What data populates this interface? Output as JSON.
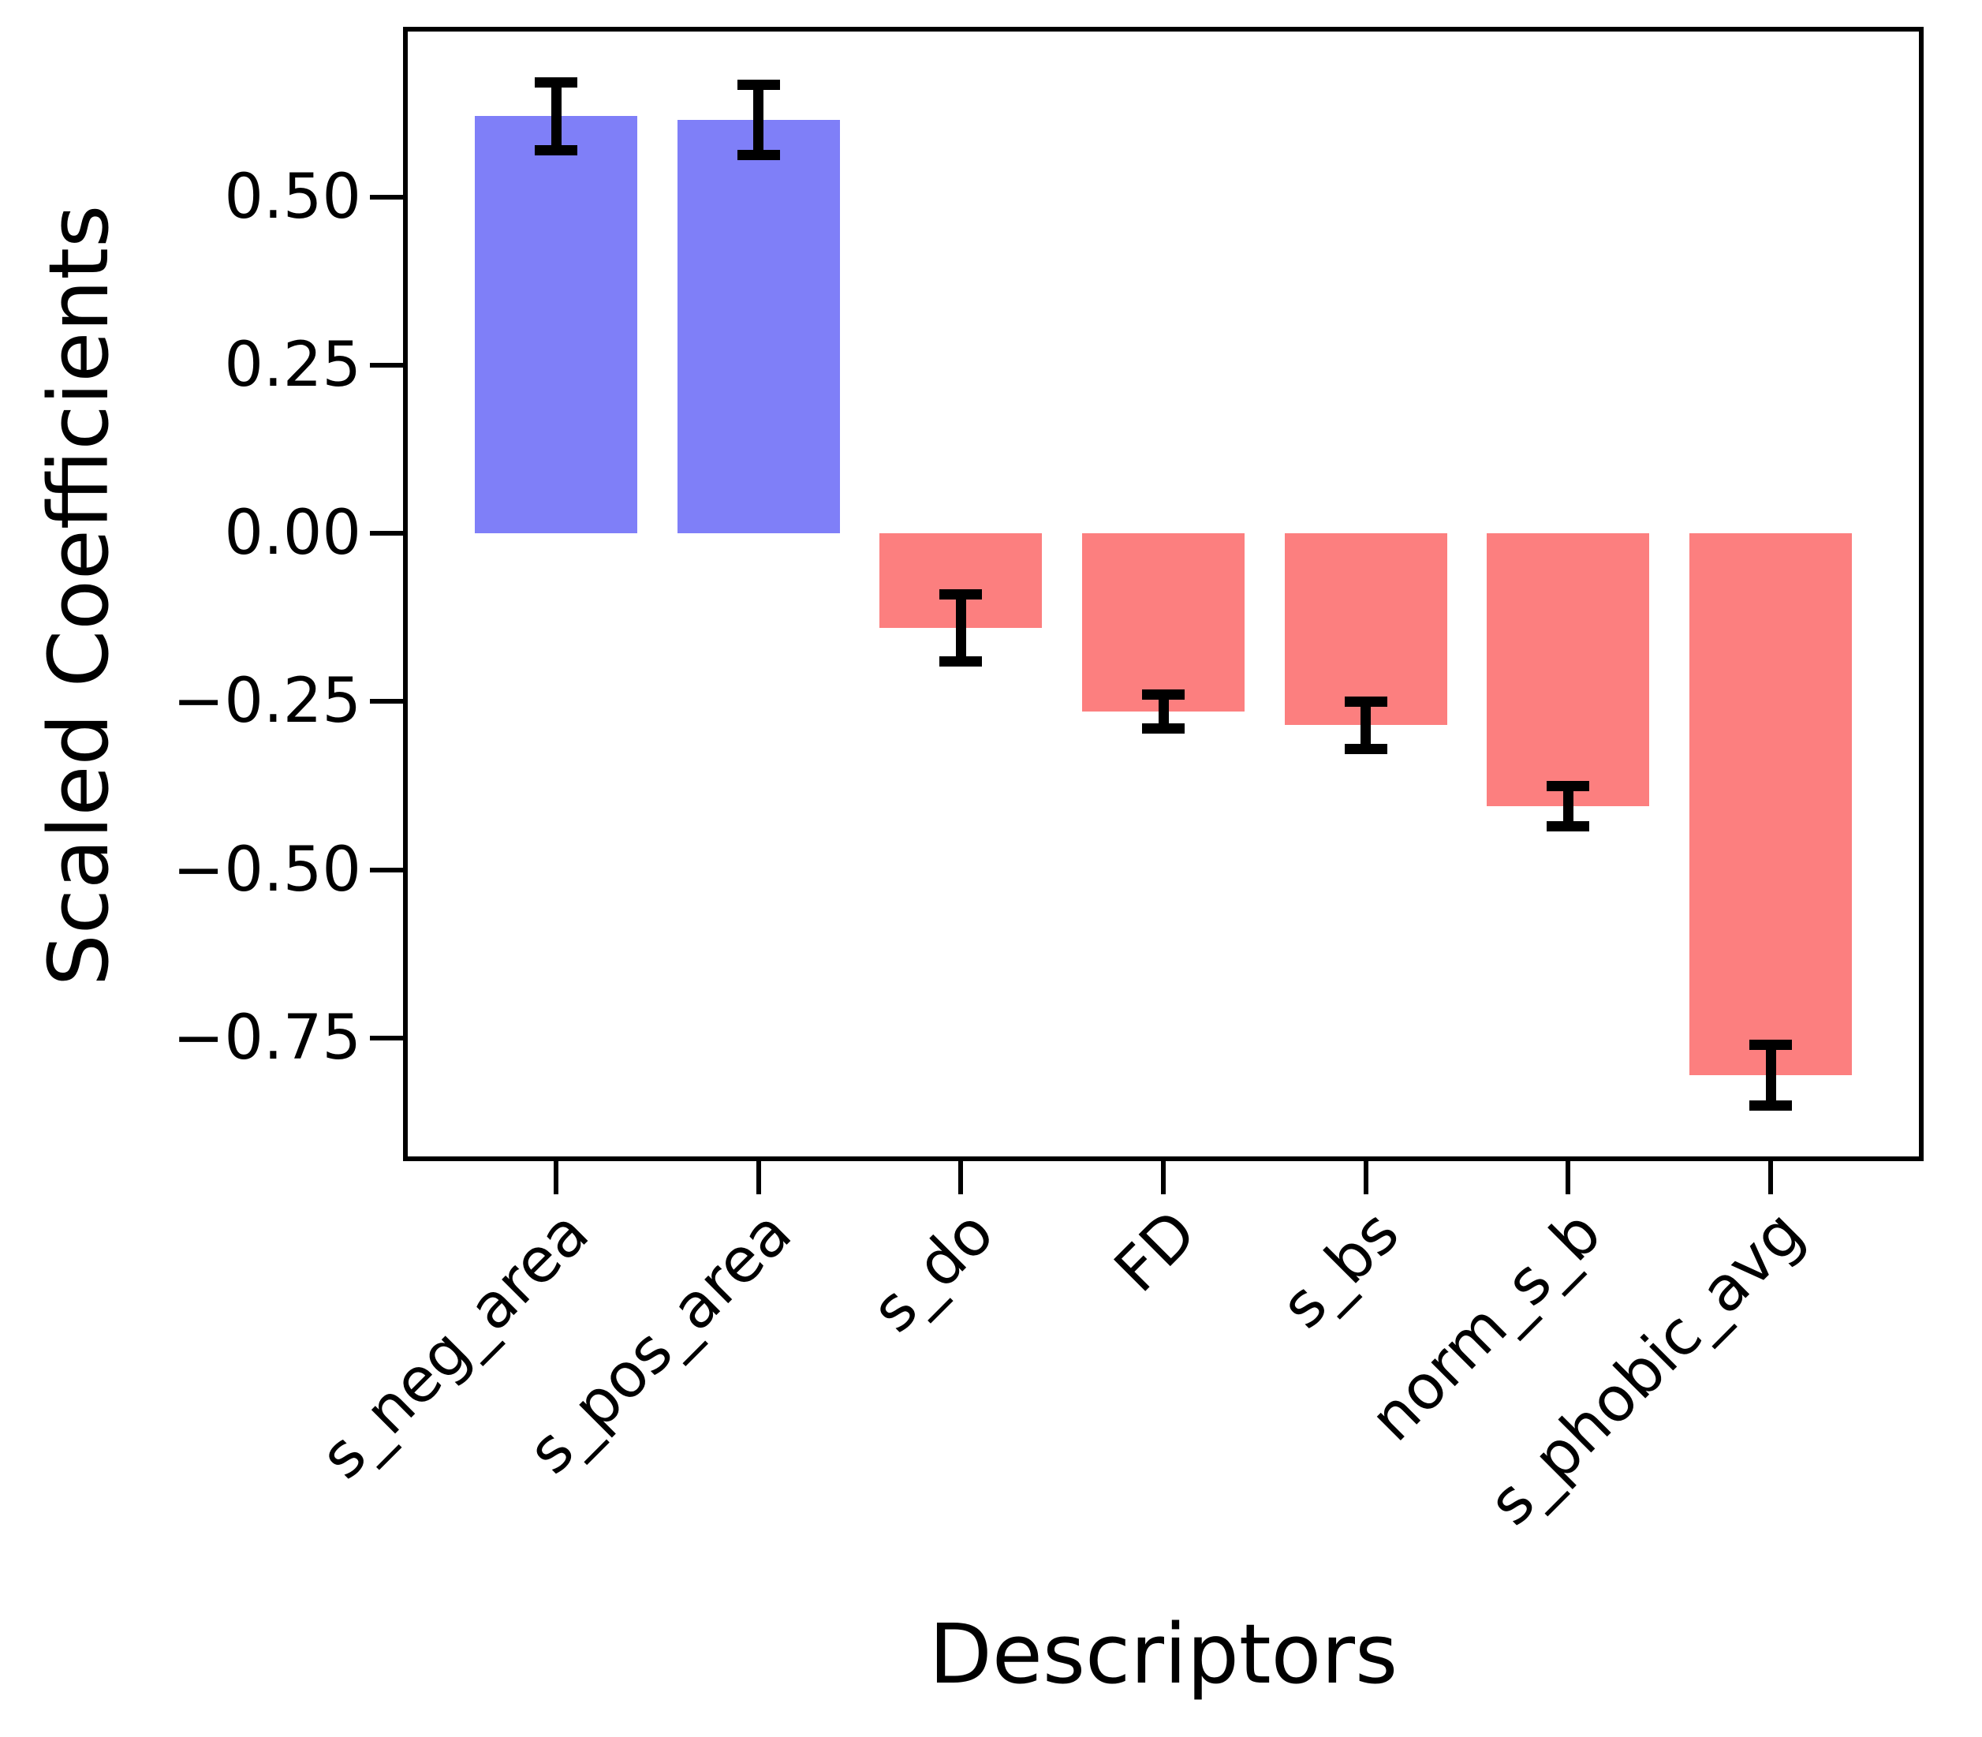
{
  "figure": {
    "background_color": "#ffffff",
    "axis_color": "#000000"
  },
  "chart_data": {
    "type": "bar",
    "title": "",
    "xlabel": "Descriptors",
    "ylabel": "Scaled Coefficients",
    "categories": [
      "s_neg_area",
      "s_pos_area",
      "s_do",
      "FD",
      "s_bs",
      "norm_s_b",
      "s_phobic_avg"
    ],
    "values": [
      0.62,
      0.615,
      -0.14,
      -0.265,
      -0.285,
      -0.405,
      -0.805
    ],
    "errors": [
      0.05,
      0.052,
      0.05,
      0.025,
      0.035,
      0.03,
      0.045
    ],
    "series": [
      {
        "name": "scaled coefficients",
        "values": [
          0.62,
          0.615,
          -0.14,
          -0.265,
          -0.285,
          -0.405,
          -0.805
        ],
        "errors": [
          0.05,
          0.052,
          0.05,
          0.025,
          0.035,
          0.03,
          0.045
        ]
      }
    ],
    "positive_color": "#7f7ff8",
    "negative_color": "#fc7f7f",
    "error_color": "#000000",
    "ylim": [
      -0.926,
      0.746
    ],
    "yticks": [
      0.5,
      0.25,
      0.0,
      -0.25,
      -0.5,
      -0.75
    ],
    "ytick_labels": [
      "0.50",
      "0.25",
      "0.00",
      "−0.25",
      "−0.50",
      "−0.75"
    ],
    "xtick_rotation_deg": 45,
    "grid": false,
    "legend": null,
    "error_bars": true
  }
}
